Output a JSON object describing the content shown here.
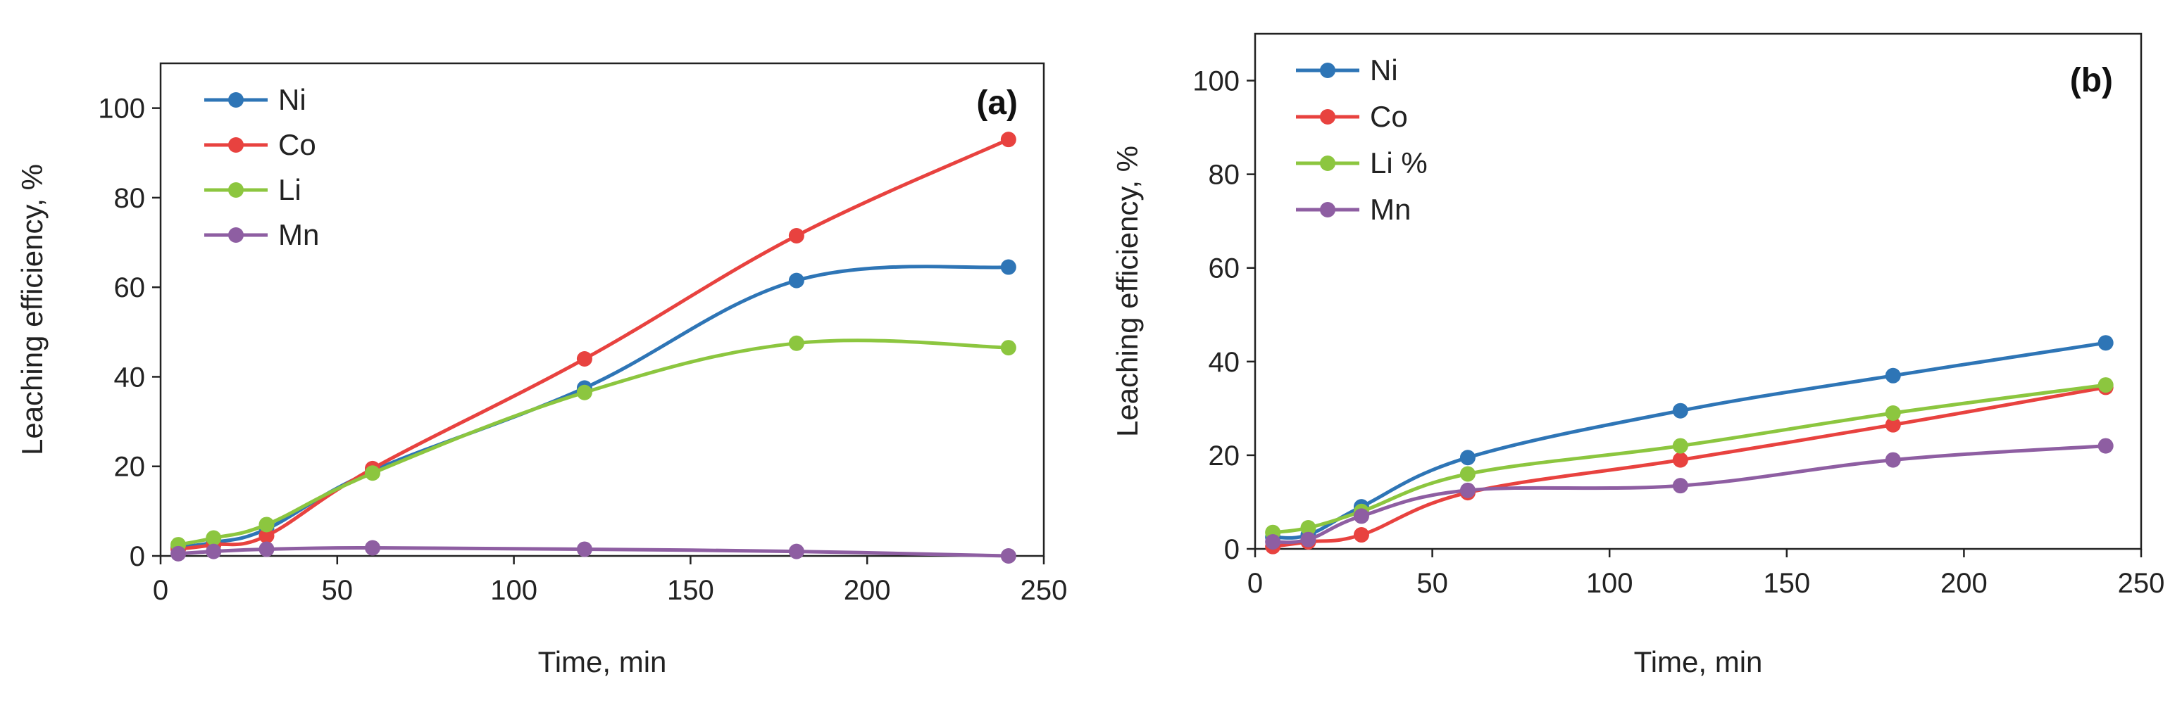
{
  "chart_data": [
    {
      "type": "line",
      "panel_label": "(a)",
      "xlabel": "Time, min",
      "ylabel": "Leaching efficiency, %",
      "xlim": [
        0,
        250
      ],
      "ylim": [
        0,
        110
      ],
      "xticks": [
        "0",
        "50",
        "100",
        "150",
        "200",
        "250"
      ],
      "yticks": [
        "0",
        "20",
        "40",
        "60",
        "80",
        "100"
      ],
      "x": [
        5,
        15,
        30,
        60,
        120,
        180,
        240
      ],
      "legend_position": "top-left",
      "series": [
        {
          "name": "Ni",
          "color": "#2E75B6",
          "values": [
            2,
            3,
            6,
            19,
            37.5,
            61.5,
            64.5
          ]
        },
        {
          "name": "Co",
          "color": "#E8423F",
          "values": [
            1.5,
            2.5,
            4.5,
            19.5,
            44,
            71.5,
            93
          ]
        },
        {
          "name": "Li",
          "color": "#8CC63F",
          "values": [
            2.5,
            4,
            7,
            18.5,
            36.5,
            47.5,
            46.5
          ]
        },
        {
          "name": "Mn",
          "color": "#8E5EA2",
          "values": [
            0.5,
            1,
            1.5,
            1.8,
            1.5,
            1,
            0
          ]
        }
      ]
    },
    {
      "type": "line",
      "panel_label": "(b)",
      "xlabel": "Time, min",
      "ylabel": "Leaching efficiency, %",
      "xlim": [
        0,
        250
      ],
      "ylim": [
        0,
        110
      ],
      "xticks": [
        "0",
        "50",
        "100",
        "150",
        "200",
        "250"
      ],
      "yticks": [
        "0",
        "20",
        "40",
        "60",
        "80",
        "100"
      ],
      "x": [
        5,
        15,
        30,
        60,
        120,
        180,
        240
      ],
      "legend_position": "top-left",
      "series": [
        {
          "name": "Ni",
          "color": "#2E75B6",
          "values": [
            2.5,
            3,
            9,
            19.5,
            29.5,
            37,
            44
          ]
        },
        {
          "name": "Co",
          "color": "#E8423F",
          "values": [
            0.5,
            1.5,
            3,
            12,
            19,
            26.5,
            34.5
          ]
        },
        {
          "name": "Li %",
          "color": "#8CC63F",
          "values": [
            3.5,
            4.5,
            8,
            16,
            22,
            29,
            35
          ]
        },
        {
          "name": "Mn",
          "color": "#8E5EA2",
          "values": [
            1.5,
            2,
            7,
            12.5,
            13.5,
            19,
            22
          ]
        }
      ]
    }
  ]
}
